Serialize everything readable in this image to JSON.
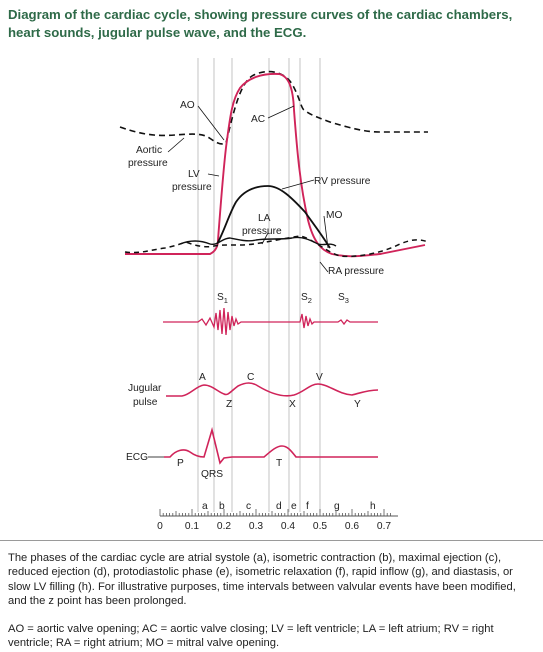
{
  "title": "Diagram of the cardiac cycle, showing pressure curves of the cardiac chambers, heart sounds, jugular pulse wave, and the ECG.",
  "colors": {
    "title": "#2e6a48",
    "curve": "#d0245a",
    "black": "#111111",
    "grid": "#b5b5b5"
  },
  "labels": {
    "ao": "AO",
    "ac": "AC",
    "aortic_pressure_1": "Aortic",
    "aortic_pressure_2": "pressure",
    "lv_pressure_1": "LV",
    "lv_pressure_2": "pressure",
    "rv_pressure": "RV pressure",
    "la_pressure_1": "LA",
    "la_pressure_2": "pressure",
    "mo": "MO",
    "ra_pressure": "RA pressure",
    "s1": "S",
    "s1_sub": "1",
    "s2": "S",
    "s2_sub": "2",
    "s3": "S",
    "s3_sub": "3",
    "jugular_1": "Jugular",
    "jugular_2": "pulse",
    "wave_a": "A",
    "wave_c": "C",
    "wave_v": "V",
    "wave_z": "Z",
    "wave_x": "X",
    "wave_y": "Y",
    "ecg": "ECG",
    "wave_p": "P",
    "wave_qrs": "QRS",
    "wave_t": "T"
  },
  "phases": [
    "a",
    "b",
    "c",
    "d",
    "e",
    "f",
    "g",
    "h"
  ],
  "time_axis": {
    "ticks": [
      "0",
      "0.1",
      "0.2",
      "0.3",
      "0.4",
      "0.5",
      "0.6",
      "0.7"
    ]
  },
  "caption_phases": "The phases of the cardiac cycle are atrial systole (a), isometric contraction (b), maximal ejection (c), reduced ejection (d), protodiastolic phase (e), isometric relaxation (f), rapid inflow (g), and diastasis, or slow LV filling (h). For illustrative purposes, time intervals between valvular events have been modified, and the z point has been prolonged.",
  "caption_abbrev": "AO = aortic valve opening; AC = aortic valve closing; LV = left ventricle; LA = left atrium; RV = right ventricle; RA = right atrium; MO = mitral valve opening."
}
